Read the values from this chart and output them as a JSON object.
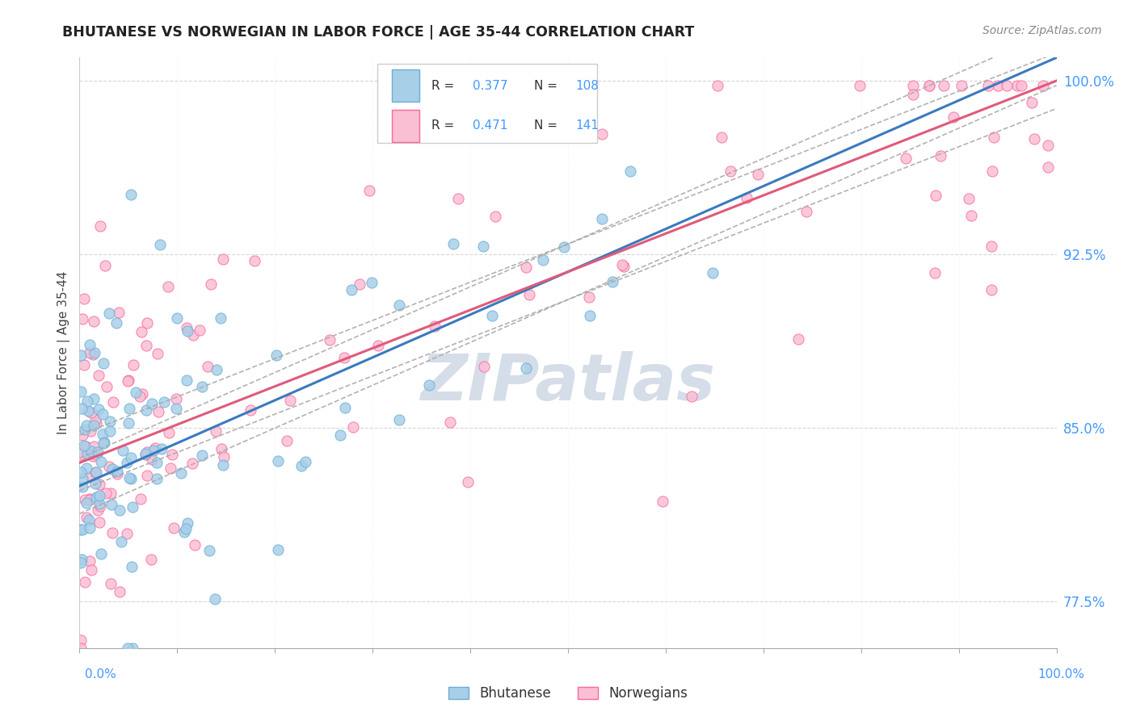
{
  "title": "BHUTANESE VS NORWEGIAN IN LABOR FORCE | AGE 35-44 CORRELATION CHART",
  "source": "Source: ZipAtlas.com",
  "ylabel": "In Labor Force | Age 35-44",
  "ytick_values": [
    0.775,
    0.85,
    0.925,
    1.0
  ],
  "ytick_labels": [
    "77.5%",
    "85.0%",
    "92.5%",
    "100.0%"
  ],
  "xmin": 0.0,
  "xmax": 1.0,
  "ymin": 0.755,
  "ymax": 1.01,
  "legend_r1": "R = 0.377",
  "legend_n1": "N = 108",
  "legend_r2": "R = 0.471",
  "legend_n2": "N = 141",
  "blue_fill": "#a8cfe8",
  "blue_edge": "#6baed6",
  "pink_fill": "#fbbfd4",
  "pink_edge": "#f768a1",
  "blue_line": "#3a7abf",
  "pink_line": "#e05a7a",
  "dashed_color": "#aaaaaa",
  "watermark": "ZIPatlas",
  "watermark_color": "#d5dde8",
  "title_color": "#222222",
  "source_color": "#888888",
  "ylabel_color": "#444444",
  "ytick_color": "#4499ff",
  "xlabel_color": "#4499ff"
}
